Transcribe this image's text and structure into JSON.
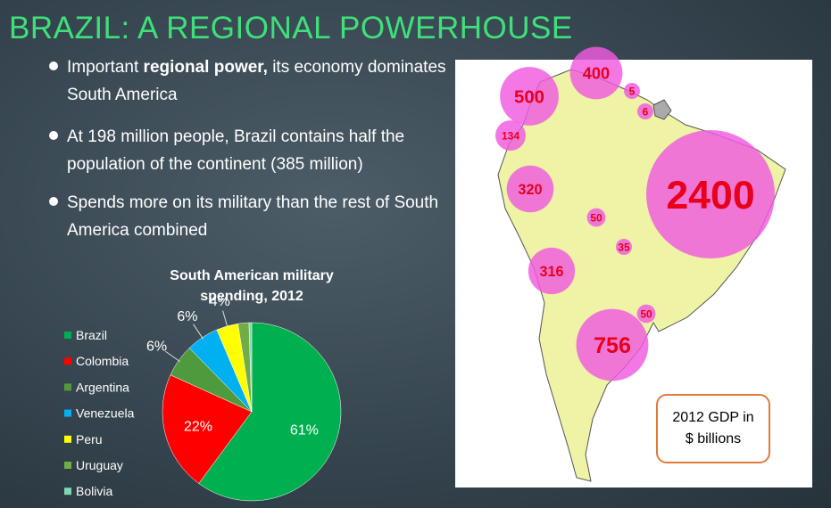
{
  "header": {
    "title": "BRAZIL: A REGIONAL POWERHOUSE"
  },
  "bullets": [
    {
      "before": "Important ",
      "bold": "regional power,",
      "after": " its economy dominates South America"
    },
    {
      "before": "At 198 million people, Brazil contains half the population of the continent (385 million)"
    },
    {
      "before": "Spends more on its military than the rest of South America combined"
    }
  ],
  "chart_data": {
    "type": "pie",
    "title": "South American military spending, 2012",
    "categories": [
      "Brazil",
      "Colombia",
      "Argentina",
      "Venezuela",
      "Peru",
      "Uruguay",
      "Bolivia"
    ],
    "values": [
      61,
      22,
      6,
      6,
      4,
      2,
      0.5
    ],
    "value_labels": [
      "61%",
      "22%",
      "6%",
      "6%",
      "4%",
      null,
      null
    ],
    "colors": [
      "#00b050",
      "#ff0000",
      "#4f9a3c",
      "#00b0f0",
      "#ffff00",
      "#70ad47",
      "#7fd6b0"
    ],
    "legend": "left"
  },
  "map": {
    "bubbles": [
      400,
      500,
      5,
      6,
      134,
      2400,
      320,
      50,
      35,
      316,
      50,
      756
    ],
    "legend_box": "2012 GDP in $ billions"
  }
}
